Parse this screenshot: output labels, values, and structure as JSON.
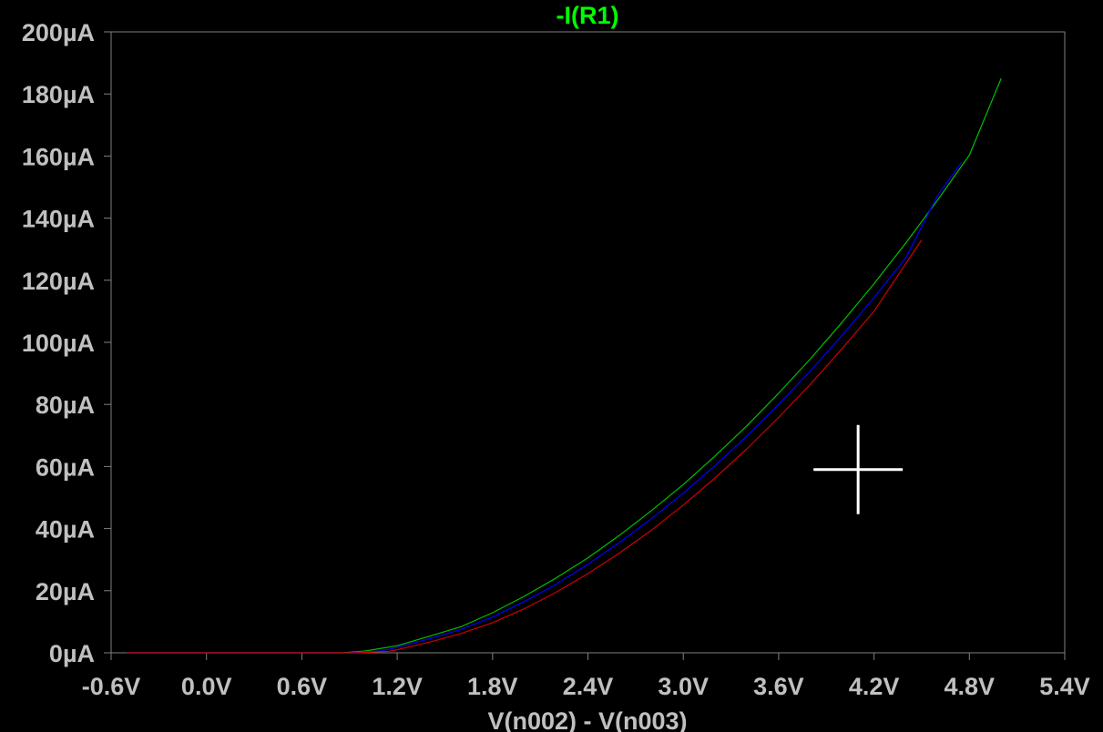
{
  "chart_data": {
    "type": "line",
    "title": "-I(R1)",
    "xlabel": "V(n002) - V(n003)",
    "ylabel": "",
    "xlim": [
      -0.6,
      5.4
    ],
    "ylim": [
      0,
      200
    ],
    "x_ticks": [
      -0.6,
      0.0,
      0.6,
      1.2,
      1.8,
      2.4,
      3.0,
      3.6,
      4.2,
      4.8,
      5.4
    ],
    "x_tick_labels": [
      "-0.6V",
      "0.0V",
      "0.6V",
      "1.2V",
      "1.8V",
      "2.4V",
      "3.0V",
      "3.6V",
      "4.2V",
      "4.8V",
      "5.4V"
    ],
    "y_ticks": [
      0,
      20,
      40,
      60,
      80,
      100,
      120,
      140,
      160,
      180,
      200
    ],
    "y_tick_labels": [
      "0µA",
      "20µA",
      "40µA",
      "60µA",
      "80µA",
      "100µA",
      "120µA",
      "140µA",
      "160µA",
      "180µA",
      "200µA"
    ],
    "x_unit": "V",
    "y_unit": "µA",
    "grid": false,
    "colors": {
      "background": "#000000",
      "frame": "#808080",
      "tick_text": "#c0c0c0",
      "title": "#00ff00",
      "cursor": "#ffffff"
    },
    "cursor_crosshair": {
      "x": 4.1,
      "y": 59
    },
    "series": [
      {
        "color": "#00c000",
        "x": [
          -0.5,
          0.0,
          0.6,
          0.85,
          1.0,
          1.2,
          1.4,
          1.6,
          1.8,
          2.0,
          2.2,
          2.4,
          2.6,
          2.8,
          3.0,
          3.2,
          3.4,
          3.6,
          3.8,
          4.0,
          4.2,
          4.4,
          4.6,
          4.8,
          5.0
        ],
        "values": [
          0,
          0,
          0,
          0,
          0.6,
          2.3,
          5.3,
          8.4,
          12.9,
          18.2,
          24.1,
          30.6,
          37.9,
          45.8,
          54.2,
          63.4,
          73.1,
          83.6,
          94.7,
          106.5,
          118.9,
          132.0,
          145.8,
          160.3,
          185
        ]
      },
      {
        "color": "#0000ff",
        "x": [
          -0.5,
          0.0,
          0.6,
          0.9,
          1.1,
          1.2,
          1.4,
          1.6,
          1.8,
          2.0,
          2.2,
          2.4,
          2.6,
          2.8,
          3.0,
          3.2,
          3.4,
          3.6,
          3.8,
          4.0,
          4.2,
          4.4,
          4.6,
          4.75
        ],
        "values": [
          0,
          0,
          0,
          0,
          0.6,
          1.8,
          4.5,
          7.5,
          11.5,
          16.5,
          22.1,
          28.5,
          35.6,
          43.2,
          51.4,
          60.3,
          69.8,
          80.0,
          90.8,
          102.3,
          114.4,
          127.2,
          147.3,
          158
        ]
      },
      {
        "color": "#d00000",
        "x": [
          -0.5,
          0.0,
          0.6,
          0.95,
          1.15,
          1.2,
          1.4,
          1.6,
          1.8,
          2.0,
          2.2,
          2.4,
          2.6,
          2.8,
          3.0,
          3.2,
          3.4,
          3.6,
          3.8,
          4.0,
          4.2,
          4.5
        ],
        "values": [
          0,
          0,
          0,
          0,
          0.5,
          1.0,
          3.4,
          6.2,
          9.7,
          14.2,
          19.5,
          25.5,
          32.2,
          39.5,
          47.6,
          56.3,
          65.7,
          75.8,
          86.5,
          98.0,
          110.0,
          133
        ]
      }
    ]
  }
}
